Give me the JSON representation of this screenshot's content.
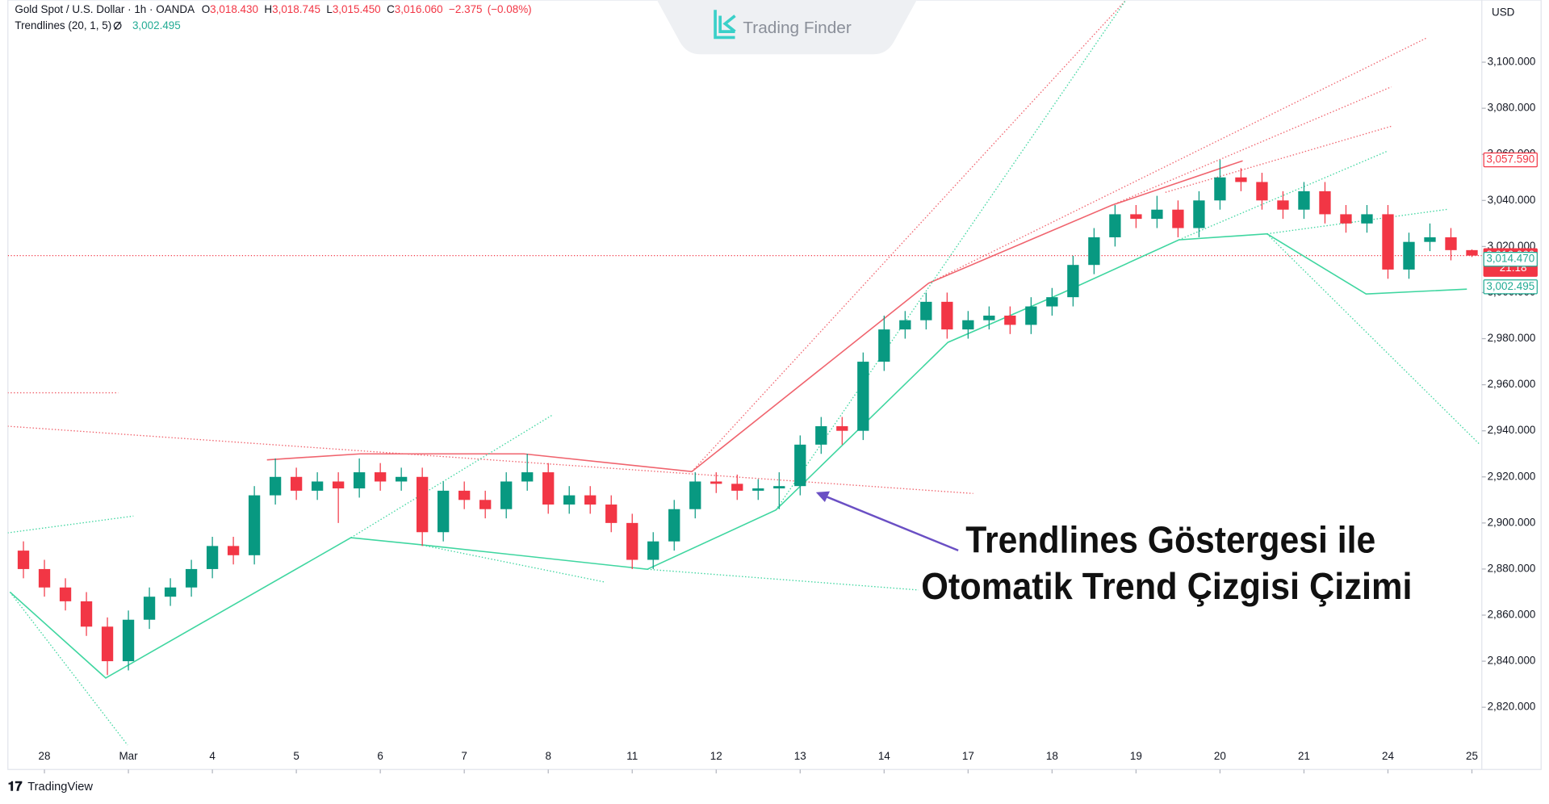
{
  "header": {
    "symbol": "Gold Spot / U.S. Dollar · 1h · OANDA",
    "ohlc": [
      {
        "key": "O",
        "value": 3018.43,
        "label": "3,018.430"
      },
      {
        "key": "H",
        "value": 3018.745,
        "label": "3,018.745"
      },
      {
        "key": "L",
        "value": 3015.45,
        "label": "3,015.450"
      },
      {
        "key": "C",
        "value": 3016.06,
        "label": "3,016.060"
      }
    ],
    "change": {
      "value": -2.375,
      "label": "−2.375"
    },
    "change_pct": {
      "value": -0.08,
      "label": "(−0.08%)"
    },
    "indicator": "Trendlines (20, 1, 5)",
    "indicator_value": {
      "value": 3002.495,
      "label": "3,002.495"
    }
  },
  "watermark": "Trading Finder",
  "footer": "TradingView",
  "annotation": [
    "Trendlines Göstergesi ile",
    "Otomatik Trend Çizgisi Çizimi"
  ],
  "chart_data": {
    "type": "candlestick",
    "currency": "USD",
    "up_color": "#089981",
    "down_color": "#f23645",
    "xlim": [
      -0.435,
      17.118
    ],
    "ylim": [
      2793,
      3127
    ],
    "xticks": [
      {
        "value": 0,
        "label": "28"
      },
      {
        "value": 1,
        "label": "Mar"
      },
      {
        "value": 2,
        "label": "4"
      },
      {
        "value": 3,
        "label": "5"
      },
      {
        "value": 4,
        "label": "6"
      },
      {
        "value": 5,
        "label": "7"
      },
      {
        "value": 6,
        "label": "8"
      },
      {
        "value": 7,
        "label": "11"
      },
      {
        "value": 8,
        "label": "12"
      },
      {
        "value": 9,
        "label": "13"
      },
      {
        "value": 10,
        "label": "14"
      },
      {
        "value": 11,
        "label": "17"
      },
      {
        "value": 12,
        "label": "18"
      },
      {
        "value": 13,
        "label": "19"
      },
      {
        "value": 14,
        "label": "20"
      },
      {
        "value": 15,
        "label": "21"
      },
      {
        "value": 16,
        "label": "24"
      },
      {
        "value": 17,
        "label": "25"
      }
    ],
    "yticks": [
      {
        "value": 2820,
        "label": "2,820.000"
      },
      {
        "value": 2840,
        "label": "2,840.000"
      },
      {
        "value": 2860,
        "label": "2,860.000"
      },
      {
        "value": 2880,
        "label": "2,880.000"
      },
      {
        "value": 2900,
        "label": "2,900.000"
      },
      {
        "value": 2920,
        "label": "2,920.000"
      },
      {
        "value": 2940,
        "label": "2,940.000"
      },
      {
        "value": 2960,
        "label": "2,960.000"
      },
      {
        "value": 2980,
        "label": "2,980.000"
      },
      {
        "value": 3000,
        "label": "3,000.000"
      },
      {
        "value": 3020,
        "label": "3,020.000"
      },
      {
        "value": 3040,
        "label": "3,040.000"
      },
      {
        "value": 3060,
        "label": "3,060.000"
      },
      {
        "value": 3080,
        "label": "3,080.000"
      },
      {
        "value": 3100,
        "label": "3,100.000"
      }
    ],
    "x": [
      -0.25,
      0,
      0.25,
      0.5,
      0.75,
      1,
      1.25,
      1.5,
      1.75,
      2,
      2.25,
      2.5,
      2.75,
      3,
      3.25,
      3.5,
      3.75,
      4,
      4.25,
      4.5,
      4.75,
      5,
      5.25,
      5.5,
      5.75,
      6,
      6.25,
      6.5,
      6.75,
      7,
      7.25,
      7.5,
      7.75,
      8,
      8.25,
      8.5,
      8.75,
      9,
      9.25,
      9.5,
      9.75,
      10,
      10.25,
      10.5,
      10.75,
      11,
      11.25,
      11.5,
      11.75,
      12,
      12.25,
      12.5,
      12.75,
      13,
      13.25,
      13.5,
      13.75,
      14,
      14.25,
      14.5,
      14.75,
      15,
      15.25,
      15.5,
      15.75,
      16,
      16.25,
      16.5,
      16.75,
      17
    ],
    "open": [
      2888,
      2880,
      2872,
      2866,
      2855,
      2840,
      2858,
      2868,
      2872,
      2880,
      2890,
      2886,
      2912,
      2920,
      2914,
      2918,
      2915,
      2922,
      2918,
      2920,
      2896,
      2914,
      2910,
      2906,
      2918,
      2922,
      2908,
      2912,
      2908,
      2900,
      2884,
      2892,
      2906,
      2918,
      2917,
      2914,
      2915,
      2916,
      2934,
      2942,
      2940,
      2970,
      2984,
      2988,
      2996,
      2984,
      2988,
      2990,
      2986,
      2994,
      2998,
      3012,
      3024,
      3034,
      3032,
      3036,
      3028,
      3040,
      3050,
      3048,
      3040,
      3036,
      3044,
      3034,
      3030,
      3034,
      3010,
      3022,
      3024,
      3018.43
    ],
    "high": [
      2892,
      2884,
      2876,
      2870,
      2859,
      2862,
      2872,
      2876,
      2884,
      2894,
      2894,
      2916,
      2928,
      2924,
      2922,
      2922,
      2928,
      2926,
      2924,
      2924,
      2918,
      2918,
      2914,
      2922,
      2930,
      2926,
      2916,
      2916,
      2912,
      2904,
      2896,
      2910,
      2922,
      2922,
      2921,
      2919,
      2922,
      2938,
      2946,
      2946,
      2974,
      2990,
      2992,
      3000,
      3000,
      2992,
      2994,
      2994,
      2998,
      3002,
      3016,
      3028,
      3038,
      3038,
      3042,
      3040,
      3044,
      3057.59,
      3054,
      3052,
      3044,
      3048,
      3048,
      3038,
      3038,
      3038,
      3026,
      3030,
      3028,
      3018.745
    ],
    "low": [
      2876,
      2868,
      2862,
      2851,
      2834,
      2836,
      2854,
      2864,
      2868,
      2876,
      2882,
      2882,
      2908,
      2910,
      2910,
      2900,
      2911,
      2914,
      2914,
      2890,
      2892,
      2906,
      2902,
      2902,
      2914,
      2904,
      2904,
      2904,
      2896,
      2880,
      2880,
      2888,
      2902,
      2913,
      2910,
      2910,
      2906,
      2912,
      2930,
      2934,
      2936,
      2966,
      2980,
      2984,
      2980,
      2980,
      2984,
      2982,
      2982,
      2990,
      2994,
      3008,
      3020,
      3028,
      3028,
      3024,
      3024,
      3036,
      3044,
      3036,
      3032,
      3032,
      3030,
      3026,
      3026,
      3006,
      3006,
      3018,
      3014,
      3015.45
    ],
    "close": [
      2880,
      2872,
      2866,
      2855,
      2840,
      2858,
      2868,
      2872,
      2880,
      2890,
      2886,
      2912,
      2920,
      2914,
      2918,
      2915,
      2922,
      2918,
      2920,
      2896,
      2914,
      2910,
      2906,
      2918,
      2922,
      2908,
      2912,
      2908,
      2900,
      2884,
      2892,
      2906,
      2918,
      2917,
      2914,
      2915,
      2916,
      2934,
      2942,
      2940,
      2970,
      2984,
      2988,
      2996,
      2984,
      2988,
      2990,
      2986,
      2994,
      2998,
      3012,
      3024,
      3034,
      3032,
      3036,
      3028,
      3040,
      3050,
      3048,
      3040,
      3036,
      3044,
      3034,
      3030,
      3034,
      3010,
      3022,
      3024,
      3018.43,
      3016.06
    ],
    "trendlines": [
      {
        "color": "#f0646e",
        "dash": "solid",
        "x": [
          2.65,
          3.76,
          5.71,
          7.71,
          10.53,
          12.71,
          14.27
        ],
        "values": [
          2927.4,
          2930,
          2930,
          2922.3,
          3004.1,
          3037.9,
          3057.2
        ]
      },
      {
        "color": "#3fd6a0",
        "dash": "solid",
        "x": [
          -0.41,
          0.73,
          3.65,
          4.47,
          7.18,
          8.71,
          10.76,
          12.12,
          13.51,
          14.56,
          15.74,
          16.94
        ],
        "values": [
          2870,
          2832.7,
          2893.6,
          2890.6,
          2879.9,
          2905.6,
          2978.4,
          2999.8,
          3022.9,
          3025.5,
          2999.4,
          3001.5
        ]
      },
      {
        "color": "#f0646e",
        "dash": "dotted",
        "x": [
          -0.44,
          11.06
        ],
        "values": [
          2942,
          2912.8
        ]
      },
      {
        "color": "#f0646e",
        "dash": "dotted",
        "x": [
          -0.44,
          0.88
        ],
        "values": [
          2956.5,
          2956.5
        ]
      },
      {
        "color": "#f0646e",
        "dash": "dotted",
        "x": [
          7.71,
          12.88
        ],
        "values": [
          2922.3,
          3127
        ]
      },
      {
        "color": "#f0646e",
        "dash": "dotted",
        "x": [
          10.53,
          16.47
        ],
        "values": [
          3004.1,
          3110.7
        ]
      },
      {
        "color": "#f0646e",
        "dash": "dotted",
        "x": [
          12.71,
          16.04
        ],
        "values": [
          3037.9,
          3089.3
        ]
      },
      {
        "color": "#f0646e",
        "dash": "dotted",
        "x": [
          13.35,
          16.04
        ],
        "values": [
          3043.5,
          3072.2
        ]
      },
      {
        "color": "#3fd6a0",
        "dash": "dotted",
        "x": [
          -0.44,
          1.06
        ],
        "values": [
          2895.7,
          2903
        ]
      },
      {
        "color": "#3fd6a0",
        "dash": "dotted",
        "x": [
          -0.41,
          0.99
        ],
        "values": [
          2870,
          2803.6
        ]
      },
      {
        "color": "#3fd6a0",
        "dash": "dotted",
        "x": [
          3.65,
          6.06
        ],
        "values": [
          2893.6,
          2947.1
        ]
      },
      {
        "color": "#3fd6a0",
        "dash": "dotted",
        "x": [
          4.47,
          6.68
        ],
        "values": [
          2890.6,
          2874.3
        ]
      },
      {
        "color": "#3fd6a0",
        "dash": "dotted",
        "x": [
          7.18,
          10.41
        ],
        "values": [
          2879.9,
          2870.9
        ]
      },
      {
        "color": "#3fd6a0",
        "dash": "dotted",
        "x": [
          8.71,
          12.88
        ],
        "values": [
          2905.6,
          3127
        ]
      },
      {
        "color": "#3fd6a0",
        "dash": "dotted",
        "x": [
          13.51,
          16
        ],
        "values": [
          3022.9,
          3061.5
        ]
      },
      {
        "color": "#3fd6a0",
        "dash": "dotted",
        "x": [
          14.56,
          17.09
        ],
        "values": [
          3025.5,
          2934.2
        ]
      },
      {
        "color": "#3fd6a0",
        "dash": "dotted",
        "x": [
          14.56,
          16.72
        ],
        "values": [
          3025.5,
          3036.2
        ]
      }
    ],
    "price_labels": [
      {
        "value": 3057.59,
        "label": "3,057.590",
        "color": "#f23645",
        "filled": false
      },
      {
        "value": 3016.06,
        "label": "3,016.060",
        "color": "#f23645",
        "filled": true,
        "line": true
      },
      {
        "value": 3014.47,
        "label": "3,014.470",
        "color": "#22ab94",
        "filled": false
      },
      {
        "value": 3002.495,
        "label": "3,002.495",
        "color": "#22ab94",
        "filled": false
      }
    ],
    "countdown": "21:18"
  }
}
